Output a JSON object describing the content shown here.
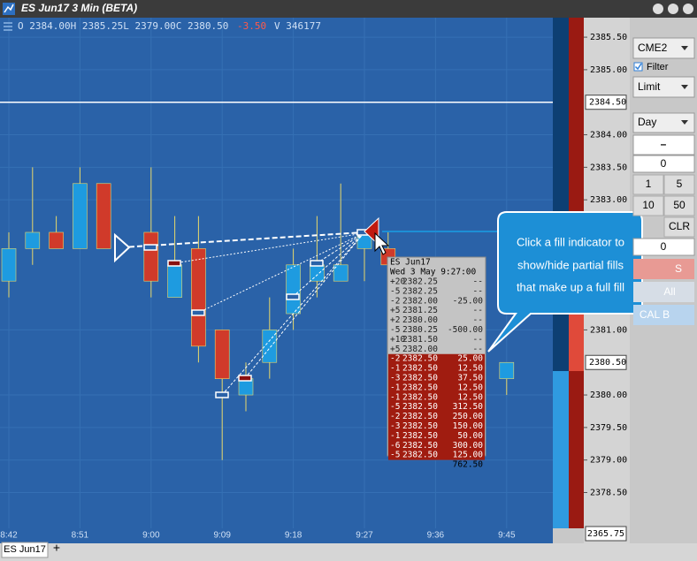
{
  "window": {
    "title": "ES Jun17 3 Min (BETA)"
  },
  "quote": {
    "ohlc": "O 2384.00H 2385.25L 2379.00C 2380.50",
    "change": "-3.50",
    "volume": "V 346177"
  },
  "chart_data": {
    "type": "candlestick",
    "categories": [
      "8:42",
      null,
      null,
      "8:51",
      null,
      null,
      "9:00",
      null,
      null,
      "9:09",
      null,
      null,
      "9:18",
      null,
      null,
      "9:27",
      null,
      null,
      "9:36",
      null,
      null,
      "9:45"
    ],
    "open": [
      2381.75,
      2382.25,
      2382.5,
      2382.25,
      2383.25,
      null,
      2382.5,
      2381.5,
      2382.25,
      2381.0,
      2380.0,
      2380.5,
      2381.25,
      2381.75,
      2381.75,
      2382.25,
      2382.25,
      null,
      null,
      null,
      null,
      2380.25
    ],
    "high": [
      2382.5,
      2383.5,
      2382.75,
      2383.5,
      2383.25,
      null,
      2383.5,
      2382.75,
      2382.75,
      2381.0,
      2380.5,
      2381.5,
      2382.25,
      2382.75,
      2383.25,
      2382.5,
      2382.5,
      null,
      null,
      null,
      null,
      2380.5
    ],
    "low": [
      2381.5,
      2382.0,
      2382.25,
      2382.25,
      2382.25,
      null,
      2381.5,
      2381.5,
      2380.5,
      2379.0,
      2379.75,
      2380.25,
      2381.0,
      2381.5,
      2381.75,
      2381.75,
      2381.75,
      null,
      null,
      null,
      null,
      2380.0
    ],
    "close": [
      2382.25,
      2382.5,
      2382.25,
      2383.25,
      2382.25,
      null,
      2381.75,
      2382.0,
      2380.75,
      2380.25,
      2380.25,
      2381.0,
      2382.0,
      2382.0,
      2382.0,
      2382.5,
      2382.0,
      null,
      null,
      null,
      null,
      2380.5
    ],
    "up_color": "#1e9be0",
    "down_color": "#d03a2a",
    "ylim": [
      2377.95,
      2385.8
    ],
    "yticks": [
      {
        "value": 2385.5,
        "label": "2385.50"
      },
      {
        "value": 2385,
        "label": "2385.00"
      },
      {
        "value": 2384,
        "label": "2384.00"
      },
      {
        "value": 2383.5,
        "label": "2383.50"
      },
      {
        "value": 2383,
        "label": "2383.00"
      },
      {
        "value": 2381,
        "label": "2381.00"
      },
      {
        "value": 2380,
        "label": "2380.00"
      },
      {
        "value": 2379.5,
        "label": "2379.50"
      },
      {
        "value": 2379,
        "label": "2379.00"
      },
      {
        "value": 2378.5,
        "label": "2378.50"
      }
    ],
    "price_markers": [
      {
        "value": 2384.5,
        "label": "2384.50"
      },
      {
        "value": 2380.5,
        "label": "2380.50"
      }
    ],
    "grid": true
  },
  "axis_footer_label": "2365.75",
  "tooltip": {
    "title": "ES Jun17",
    "time": "Wed 3 May 9:27:00",
    "rows": [
      [
        "+20",
        "2382.25",
        "--"
      ],
      [
        "-5",
        "2382.25",
        "--"
      ],
      [
        "-2",
        "2382.00",
        "-25.00"
      ],
      [
        "+5",
        "2381.25",
        "--"
      ],
      [
        "+2",
        "2380.00",
        "--"
      ],
      [
        "-5",
        "2380.25",
        "-500.00"
      ],
      [
        "+10",
        "2381.50",
        "--"
      ],
      [
        "+5",
        "2382.00",
        "--"
      ]
    ],
    "fill_rows": [
      [
        "-2",
        "2382.50",
        "25.00"
      ],
      [
        "-1",
        "2382.50",
        "12.50"
      ],
      [
        "-3",
        "2382.50",
        "37.50"
      ],
      [
        "-1",
        "2382.50",
        "12.50"
      ],
      [
        "-1",
        "2382.50",
        "12.50"
      ],
      [
        "-5",
        "2382.50",
        "312.50"
      ],
      [
        "-2",
        "2382.50",
        "250.00"
      ],
      [
        "-3",
        "2382.50",
        "150.00"
      ],
      [
        "-1",
        "2382.50",
        "50.00"
      ],
      [
        "-6",
        "2382.50",
        "300.00"
      ],
      [
        "-5",
        "2382.50",
        "125.00"
      ]
    ],
    "total": "762.50"
  },
  "callout": {
    "lines": [
      "Click a fill indicator to",
      "show/hide partial fills",
      "that make up a full fill"
    ]
  },
  "panel": {
    "exchange": "CME2",
    "filter": "Filter",
    "order_type": "Limit",
    "duration": "Day",
    "minus": "–",
    "quantity": "0",
    "buttons": [
      "1",
      "5",
      "10",
      "50",
      "CLR"
    ],
    "price": "0",
    "sell": "S",
    "all": "All",
    "cancel": "CAL B"
  },
  "tabs": {
    "active": "ES Jun17",
    "add": "+"
  }
}
